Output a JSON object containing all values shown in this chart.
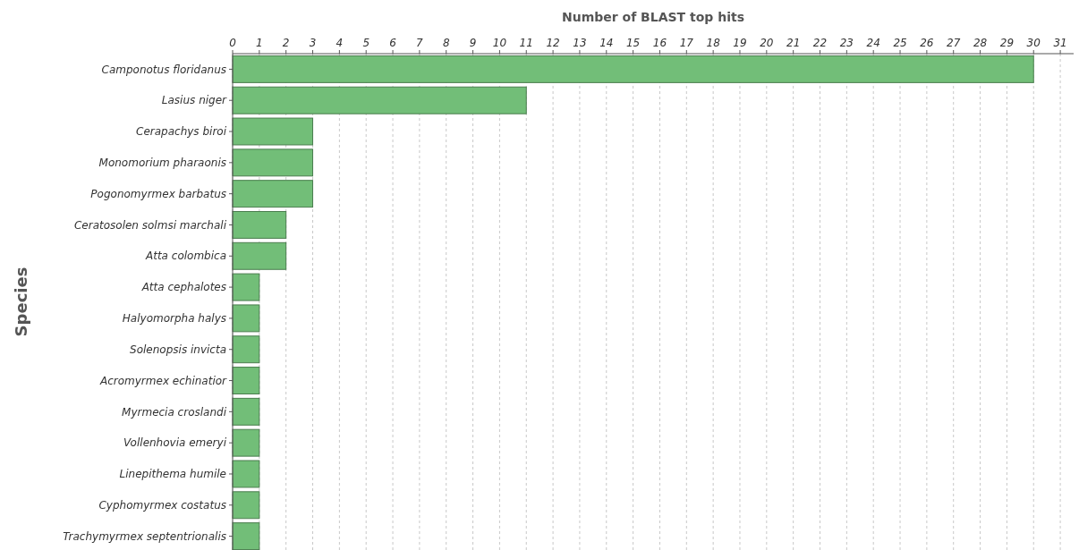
{
  "chart_data": {
    "type": "bar",
    "orientation": "horizontal",
    "xlabel": "Number of BLAST top hits",
    "ylabel": "Species",
    "categories": [
      "Camponotus floridanus",
      "Lasius niger",
      "Cerapachys biroi",
      "Monomorium pharaonis",
      "Pogonomyrmex barbatus",
      "Ceratosolen solmsi marchali",
      "Atta colombica",
      "Atta cephalotes",
      "Halyomorpha halys",
      "Solenopsis invicta",
      "Acromyrmex echinatior",
      "Myrmecia croslandi",
      "Vollenhovia emeryi",
      "Linepithema humile",
      "Cyphomyrmex costatus",
      "Trachymyrmex septentrionalis"
    ],
    "values": [
      30,
      11,
      3,
      3,
      3,
      2,
      2,
      1,
      1,
      1,
      1,
      1,
      1,
      1,
      1,
      1
    ],
    "color": "#72be78",
    "xlim": [
      0,
      31.5
    ],
    "xticks": [
      0,
      1,
      2,
      3,
      4,
      5,
      6,
      7,
      8,
      9,
      10,
      11,
      12,
      13,
      14,
      15,
      16,
      17,
      18,
      19,
      20,
      21,
      22,
      23,
      24,
      25,
      26,
      27,
      28,
      29,
      30,
      31
    ],
    "grid": "x"
  }
}
